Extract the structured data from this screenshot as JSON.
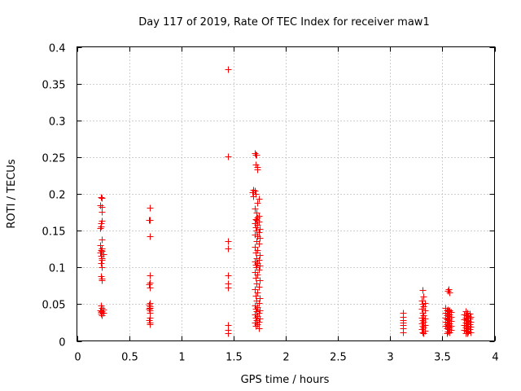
{
  "chart_data": {
    "type": "scatter",
    "title": "Day 117 of 2019, Rate Of TEC Index for receiver maw1",
    "xlabel": "GPS time / hours",
    "ylabel": "ROTI / TECUs",
    "xlim": [
      0,
      4
    ],
    "ylim": [
      0,
      0.4
    ],
    "x_ticks": [
      0,
      0.5,
      1,
      1.5,
      2,
      2.5,
      3,
      3.5,
      4
    ],
    "x_tick_labels": [
      "0",
      "0.5",
      "1",
      "1.5",
      "2",
      "2.5",
      "3",
      "3.5",
      "4"
    ],
    "y_ticks": [
      0,
      0.05,
      0.1,
      0.15,
      0.2,
      0.25,
      0.3,
      0.35,
      0.4
    ],
    "y_tick_labels": [
      "0",
      "0.05",
      "0.1",
      "0.15",
      "0.2",
      "0.25",
      "0.3",
      "0.35",
      "0.4"
    ],
    "grid": true,
    "marker": "+",
    "marker_color": "#ff0000",
    "series": [
      {
        "name": "maw1",
        "points": [
          [
            0.23,
            0.196
          ],
          [
            0.24,
            0.194
          ],
          [
            0.22,
            0.184
          ],
          [
            0.24,
            0.182
          ],
          [
            0.24,
            0.176
          ],
          [
            0.24,
            0.163
          ],
          [
            0.23,
            0.16
          ],
          [
            0.23,
            0.156
          ],
          [
            0.22,
            0.154
          ],
          [
            0.24,
            0.138
          ],
          [
            0.22,
            0.13
          ],
          [
            0.24,
            0.126
          ],
          [
            0.23,
            0.124
          ],
          [
            0.24,
            0.122
          ],
          [
            0.22,
            0.12
          ],
          [
            0.25,
            0.118
          ],
          [
            0.23,
            0.116
          ],
          [
            0.24,
            0.113
          ],
          [
            0.24,
            0.11
          ],
          [
            0.23,
            0.106
          ],
          [
            0.24,
            0.1
          ],
          [
            0.23,
            0.088
          ],
          [
            0.24,
            0.085
          ],
          [
            0.24,
            0.082
          ],
          [
            0.23,
            0.048
          ],
          [
            0.24,
            0.045
          ],
          [
            0.25,
            0.043
          ],
          [
            0.22,
            0.041
          ],
          [
            0.24,
            0.04
          ],
          [
            0.23,
            0.039
          ],
          [
            0.25,
            0.038
          ],
          [
            0.23,
            0.037
          ],
          [
            0.24,
            0.035
          ],
          [
            0.7,
            0.181
          ],
          [
            0.69,
            0.165
          ],
          [
            0.7,
            0.164
          ],
          [
            0.7,
            0.142
          ],
          [
            0.7,
            0.089
          ],
          [
            0.7,
            0.079
          ],
          [
            0.69,
            0.077
          ],
          [
            0.7,
            0.073
          ],
          [
            0.7,
            0.052
          ],
          [
            0.69,
            0.049
          ],
          [
            0.7,
            0.047
          ],
          [
            0.7,
            0.045
          ],
          [
            0.69,
            0.044
          ],
          [
            0.7,
            0.041
          ],
          [
            0.7,
            0.038
          ],
          [
            0.7,
            0.032
          ],
          [
            0.69,
            0.028
          ],
          [
            0.7,
            0.025
          ],
          [
            0.7,
            0.023
          ],
          [
            1.45,
            0.37
          ],
          [
            1.45,
            0.251
          ],
          [
            1.45,
            0.136
          ],
          [
            1.45,
            0.126
          ],
          [
            1.45,
            0.089
          ],
          [
            1.45,
            0.078
          ],
          [
            1.45,
            0.073
          ],
          [
            1.45,
            0.022
          ],
          [
            1.45,
            0.015
          ],
          [
            1.45,
            0.011
          ],
          [
            1.7,
            0.255
          ],
          [
            1.71,
            0.253
          ],
          [
            1.72,
            0.253
          ],
          [
            1.71,
            0.24
          ],
          [
            1.73,
            0.237
          ],
          [
            1.73,
            0.233
          ],
          [
            1.69,
            0.206
          ],
          [
            1.7,
            0.204
          ],
          [
            1.68,
            0.202
          ],
          [
            1.71,
            0.2
          ],
          [
            1.69,
            0.197
          ],
          [
            1.74,
            0.193
          ],
          [
            1.73,
            0.188
          ],
          [
            1.7,
            0.18
          ],
          [
            1.72,
            0.175
          ],
          [
            1.74,
            0.17
          ],
          [
            1.73,
            0.168
          ],
          [
            1.71,
            0.166
          ],
          [
            1.72,
            0.164
          ],
          [
            1.74,
            0.162
          ],
          [
            1.7,
            0.16
          ],
          [
            1.73,
            0.158
          ],
          [
            1.71,
            0.155
          ],
          [
            1.75,
            0.152
          ],
          [
            1.72,
            0.15
          ],
          [
            1.74,
            0.148
          ],
          [
            1.7,
            0.145
          ],
          [
            1.73,
            0.142
          ],
          [
            1.75,
            0.14
          ],
          [
            1.72,
            0.136
          ],
          [
            1.74,
            0.132
          ],
          [
            1.7,
            0.128
          ],
          [
            1.73,
            0.124
          ],
          [
            1.71,
            0.12
          ],
          [
            1.75,
            0.117
          ],
          [
            1.72,
            0.113
          ],
          [
            1.74,
            0.11
          ],
          [
            1.7,
            0.108
          ],
          [
            1.73,
            0.106
          ],
          [
            1.71,
            0.104
          ],
          [
            1.75,
            0.102
          ],
          [
            1.72,
            0.1
          ],
          [
            1.74,
            0.097
          ],
          [
            1.7,
            0.094
          ],
          [
            1.73,
            0.09
          ],
          [
            1.71,
            0.086
          ],
          [
            1.75,
            0.082
          ],
          [
            1.72,
            0.078
          ],
          [
            1.74,
            0.074
          ],
          [
            1.7,
            0.07
          ],
          [
            1.73,
            0.066
          ],
          [
            1.71,
            0.062
          ],
          [
            1.75,
            0.058
          ],
          [
            1.72,
            0.055
          ],
          [
            1.74,
            0.051
          ],
          [
            1.7,
            0.048
          ],
          [
            1.73,
            0.046
          ],
          [
            1.71,
            0.044
          ],
          [
            1.75,
            0.042
          ],
          [
            1.72,
            0.04
          ],
          [
            1.74,
            0.038
          ],
          [
            1.7,
            0.036
          ],
          [
            1.73,
            0.034
          ],
          [
            1.71,
            0.032
          ],
          [
            1.75,
            0.03
          ],
          [
            1.72,
            0.028
          ],
          [
            1.74,
            0.026
          ],
          [
            1.7,
            0.025
          ],
          [
            1.73,
            0.023
          ],
          [
            1.71,
            0.021
          ],
          [
            1.74,
            0.017
          ],
          [
            3.12,
            0.038
          ],
          [
            3.12,
            0.033
          ],
          [
            3.12,
            0.028
          ],
          [
            3.12,
            0.025
          ],
          [
            3.12,
            0.022
          ],
          [
            3.12,
            0.017
          ],
          [
            3.12,
            0.012
          ],
          [
            3.31,
            0.069
          ],
          [
            3.32,
            0.06
          ],
          [
            3.3,
            0.055
          ],
          [
            3.33,
            0.052
          ],
          [
            3.31,
            0.05
          ],
          [
            3.32,
            0.047
          ],
          [
            3.3,
            0.044
          ],
          [
            3.33,
            0.041
          ],
          [
            3.31,
            0.038
          ],
          [
            3.32,
            0.035
          ],
          [
            3.3,
            0.032
          ],
          [
            3.33,
            0.03
          ],
          [
            3.31,
            0.028
          ],
          [
            3.32,
            0.026
          ],
          [
            3.3,
            0.024
          ],
          [
            3.33,
            0.022
          ],
          [
            3.31,
            0.02
          ],
          [
            3.32,
            0.018
          ],
          [
            3.3,
            0.016
          ],
          [
            3.33,
            0.014
          ],
          [
            3.31,
            0.012
          ],
          [
            3.32,
            0.01
          ],
          [
            3.56,
            0.07
          ],
          [
            3.55,
            0.068
          ],
          [
            3.57,
            0.066
          ],
          [
            3.53,
            0.045
          ],
          [
            3.55,
            0.043
          ],
          [
            3.57,
            0.042
          ],
          [
            3.54,
            0.041
          ],
          [
            3.56,
            0.04
          ],
          [
            3.58,
            0.039
          ],
          [
            3.53,
            0.038
          ],
          [
            3.55,
            0.037
          ],
          [
            3.57,
            0.036
          ],
          [
            3.54,
            0.035
          ],
          [
            3.56,
            0.034
          ],
          [
            3.58,
            0.033
          ],
          [
            3.53,
            0.032
          ],
          [
            3.55,
            0.031
          ],
          [
            3.57,
            0.03
          ],
          [
            3.54,
            0.029
          ],
          [
            3.56,
            0.028
          ],
          [
            3.58,
            0.027
          ],
          [
            3.53,
            0.026
          ],
          [
            3.55,
            0.025
          ],
          [
            3.57,
            0.024
          ],
          [
            3.54,
            0.023
          ],
          [
            3.56,
            0.022
          ],
          [
            3.58,
            0.021
          ],
          [
            3.53,
            0.02
          ],
          [
            3.55,
            0.019
          ],
          [
            3.57,
            0.018
          ],
          [
            3.54,
            0.017
          ],
          [
            3.56,
            0.016
          ],
          [
            3.58,
            0.015
          ],
          [
            3.55,
            0.013
          ],
          [
            3.57,
            0.012
          ],
          [
            3.54,
            0.011
          ],
          [
            3.72,
            0.04
          ],
          [
            3.74,
            0.038
          ],
          [
            3.76,
            0.037
          ],
          [
            3.71,
            0.036
          ],
          [
            3.73,
            0.035
          ],
          [
            3.75,
            0.034
          ],
          [
            3.77,
            0.033
          ],
          [
            3.72,
            0.032
          ],
          [
            3.74,
            0.031
          ],
          [
            3.76,
            0.03
          ],
          [
            3.71,
            0.029
          ],
          [
            3.73,
            0.028
          ],
          [
            3.75,
            0.027
          ],
          [
            3.77,
            0.026
          ],
          [
            3.72,
            0.025
          ],
          [
            3.74,
            0.024
          ],
          [
            3.76,
            0.023
          ],
          [
            3.71,
            0.022
          ],
          [
            3.73,
            0.021
          ],
          [
            3.75,
            0.02
          ],
          [
            3.77,
            0.019
          ],
          [
            3.72,
            0.018
          ],
          [
            3.74,
            0.017
          ],
          [
            3.76,
            0.016
          ],
          [
            3.71,
            0.015
          ],
          [
            3.73,
            0.014
          ],
          [
            3.75,
            0.013
          ],
          [
            3.77,
            0.012
          ],
          [
            3.74,
            0.011
          ],
          [
            3.72,
            0.01
          ]
        ]
      }
    ]
  }
}
